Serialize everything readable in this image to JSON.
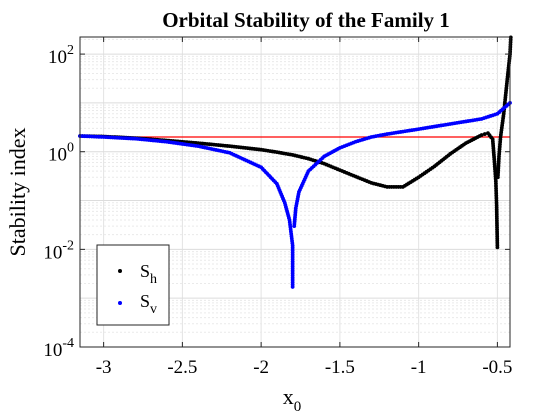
{
  "chart_data": {
    "type": "scatter",
    "title": "Orbital Stability of the Family 1",
    "xlabel": "x",
    "xlabel_subscript": "0",
    "ylabel": "Stability index",
    "xlim": [
      -3.15,
      -0.42
    ],
    "ylim_log10": [
      -4,
      2.35
    ],
    "yscale": "log",
    "grid": true,
    "minor_grid": true,
    "x_ticks": [
      -3,
      -2.5,
      -2,
      -1.5,
      -1,
      -0.5
    ],
    "x_tick_labels": [
      "-3",
      "-2.5",
      "-2",
      "-1.5",
      "-1",
      "-0.5"
    ],
    "y_ticks": [
      {
        "base": "10",
        "exp": "-4",
        "value": 0.0001
      },
      {
        "base": "10",
        "exp": "-2",
        "value": 0.01
      },
      {
        "base": "10",
        "exp": "0",
        "value": 1
      },
      {
        "base": "10",
        "exp": "2",
        "value": 100
      }
    ],
    "reference_line": {
      "y": 2,
      "color": "#ff0000"
    },
    "legend_position": "bottom-left",
    "series": [
      {
        "name": "S",
        "name_subscript": "h",
        "color": "#000000",
        "points": [
          [
            -3.15,
            2.1
          ],
          [
            -3.0,
            2.05
          ],
          [
            -2.8,
            1.9
          ],
          [
            -2.6,
            1.7
          ],
          [
            -2.4,
            1.5
          ],
          [
            -2.2,
            1.3
          ],
          [
            -2.0,
            1.1
          ],
          [
            -1.9,
            0.98
          ],
          [
            -1.8,
            0.86
          ],
          [
            -1.7,
            0.72
          ],
          [
            -1.6,
            0.57
          ],
          [
            -1.5,
            0.42
          ],
          [
            -1.4,
            0.31
          ],
          [
            -1.3,
            0.23
          ],
          [
            -1.2,
            0.19
          ],
          [
            -1.1,
            0.19
          ],
          [
            -1.0,
            0.3
          ],
          [
            -0.9,
            0.5
          ],
          [
            -0.8,
            0.9
          ],
          [
            -0.7,
            1.5
          ],
          [
            -0.6,
            2.2
          ],
          [
            -0.56,
            2.4
          ],
          [
            -0.53,
            1.8
          ],
          [
            -0.52,
            0.7
          ],
          [
            -0.51,
            0.25
          ],
          [
            -0.505,
            0.08
          ],
          [
            -0.5,
            0.011
          ],
          [
            -0.497,
            0.3
          ],
          [
            -0.49,
            0.8
          ],
          [
            -0.48,
            2.0
          ],
          [
            -0.46,
            6.0
          ],
          [
            -0.44,
            25
          ],
          [
            -0.42,
            100
          ],
          [
            -0.415,
            220
          ]
        ]
      },
      {
        "name": "S",
        "name_subscript": "v",
        "color": "#0000ff",
        "points": [
          [
            -3.15,
            2.1
          ],
          [
            -3.0,
            2.0
          ],
          [
            -2.8,
            1.85
          ],
          [
            -2.6,
            1.6
          ],
          [
            -2.4,
            1.3
          ],
          [
            -2.2,
            0.95
          ],
          [
            -2.0,
            0.48
          ],
          [
            -1.9,
            0.22
          ],
          [
            -1.85,
            0.09
          ],
          [
            -1.82,
            0.04
          ],
          [
            -1.8,
            0.012
          ],
          [
            -1.8,
            0.0017
          ],
          [
            -1.79,
            0.03
          ],
          [
            -1.78,
            0.07
          ],
          [
            -1.76,
            0.15
          ],
          [
            -1.7,
            0.4
          ],
          [
            -1.6,
            0.8
          ],
          [
            -1.5,
            1.2
          ],
          [
            -1.4,
            1.6
          ],
          [
            -1.3,
            2.0
          ],
          [
            -1.2,
            2.3
          ],
          [
            -1.0,
            2.9
          ],
          [
            -0.8,
            3.7
          ],
          [
            -0.6,
            4.7
          ],
          [
            -0.5,
            6.0
          ],
          [
            -0.42,
            10
          ]
        ]
      }
    ]
  }
}
